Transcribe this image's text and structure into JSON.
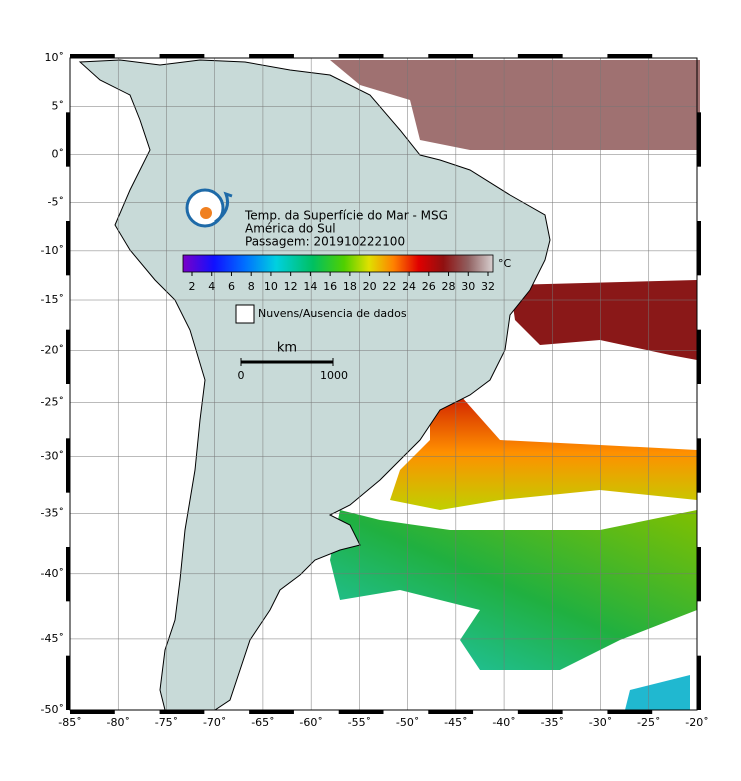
{
  "map": {
    "title_lines": [
      "Temp. da Superfície do Mar - MSG",
      "América do Sul",
      "Passagem: 201910222100"
    ],
    "colorbar": {
      "unit": "°C",
      "ticks": [
        2,
        4,
        6,
        8,
        10,
        12,
        14,
        16,
        18,
        20,
        22,
        24,
        26,
        28,
        30,
        32
      ]
    },
    "legend": "Nuvens/Ausencia de dados",
    "scale_bar": {
      "unit": "km",
      "labels": [
        "0",
        "1000"
      ]
    },
    "lon_ticks": [
      {
        "value": -85,
        "label": "-85˚"
      },
      {
        "value": -80,
        "label": "-80˚"
      },
      {
        "value": -75,
        "label": "-75˚"
      },
      {
        "value": -70,
        "label": "-70˚"
      },
      {
        "value": -65,
        "label": "-65˚"
      },
      {
        "value": -60,
        "label": "-60˚"
      },
      {
        "value": -55,
        "label": "-55˚"
      },
      {
        "value": -50,
        "label": "-50˚"
      },
      {
        "value": -45,
        "label": "-45˚"
      },
      {
        "value": -40,
        "label": "-40˚"
      },
      {
        "value": -35,
        "label": "-35˚"
      },
      {
        "value": -30,
        "label": "-30˚"
      },
      {
        "value": -25,
        "label": "-25˚"
      },
      {
        "value": -20,
        "label": "-20˚"
      }
    ],
    "lat_ticks": [
      {
        "value": 10,
        "label": "10˚"
      },
      {
        "value": 5,
        "label": "5˚"
      },
      {
        "value": 0,
        "label": "0˚"
      },
      {
        "value": -5,
        "label": "-5˚"
      },
      {
        "value": -10,
        "label": "-10˚"
      },
      {
        "value": -15,
        "label": "-15˚"
      },
      {
        "value": -20,
        "label": "-20˚"
      },
      {
        "value": -25,
        "label": "-25˚"
      },
      {
        "value": -30,
        "label": "-30˚"
      },
      {
        "value": -35,
        "label": "-35˚"
      },
      {
        "value": -40,
        "label": "-40˚"
      },
      {
        "value": -45,
        "label": "-45˚"
      },
      {
        "value": -50,
        "label": "-50˚"
      }
    ]
  }
}
